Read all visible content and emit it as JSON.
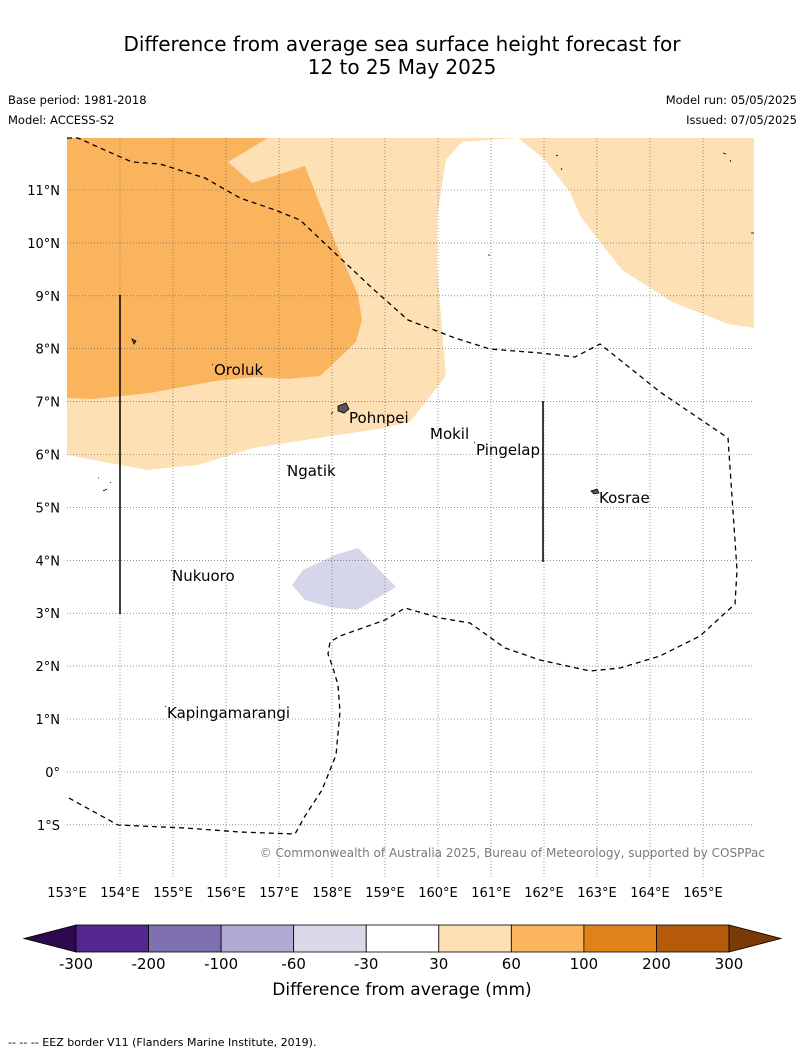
{
  "title": {
    "line1": "Difference from average sea surface height forecast for",
    "line2": "12 to 25 May 2025"
  },
  "meta": {
    "base_period": "Base period: 1981-2018",
    "model": "Model: ACCESS-S2",
    "model_run": "Model run: 05/05/2025",
    "issued": "Issued: 07/05/2025"
  },
  "map": {
    "longitude_ticks": [
      "153°E",
      "154°E",
      "155°E",
      "156°E",
      "157°E",
      "158°E",
      "159°E",
      "160°E",
      "161°E",
      "162°E",
      "163°E",
      "164°E",
      "165°E"
    ],
    "latitude_ticks": [
      "11°N",
      "10°N",
      "9°N",
      "8°N",
      "7°N",
      "6°N",
      "5°N",
      "4°N",
      "3°N",
      "2°N",
      "1°N",
      "0°",
      "1°S"
    ],
    "places": [
      "Oroluk",
      "Pohnpei",
      "Mokil",
      "Pingelap",
      "Ngatik",
      "Kosrae",
      "Nukuoro",
      "Kapingamarangi"
    ],
    "copyright": "© Commonwealth of Australia 2025, Bureau of Meteorology, supported by COSPPac"
  },
  "colorbar": {
    "label": "Difference from average (mm)",
    "ticks": [
      "-300",
      "-200",
      "-100",
      "-60",
      "-30",
      "30",
      "60",
      "100",
      "200",
      "300"
    ],
    "colors": [
      "#2d0a4e",
      "#54278f",
      "#7f71b0",
      "#b0a9d2",
      "#d9d9ea",
      "#ffffff",
      "#fde0b3",
      "#fbb45e",
      "#e0821a",
      "#b45a08",
      "#7a3a05"
    ]
  },
  "legend": {
    "eez": "--  --  -- EEZ border V11 (Flanders Marine Institute, 2019)."
  }
}
